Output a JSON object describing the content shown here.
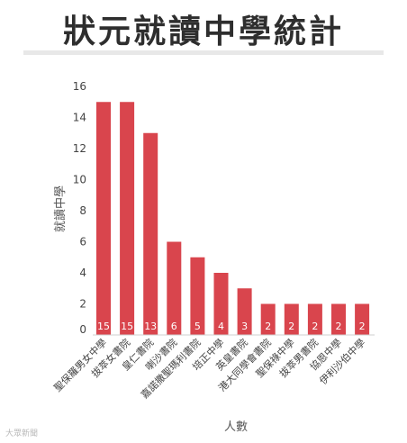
{
  "chart_data": {
    "type": "bar",
    "title": "狀元就讀中學統計",
    "xlabel": "人數",
    "ylabel": "就讀中學",
    "ylim": [
      0,
      16
    ],
    "yticks": [
      0,
      2,
      4,
      6,
      8,
      10,
      12,
      14,
      16
    ],
    "grid": false,
    "bar_color": "#d9454d",
    "categories": [
      "聖保羅男女中學",
      "拔萃女書院",
      "皇仁書院",
      "喇沙書院",
      "嘉諾撒聖瑪利書院",
      "培正中學",
      "英皇書院",
      "港大同學會書院",
      "聖保祿中學",
      "拔萃男書院",
      "協恩中學",
      "伊利沙伯中學"
    ],
    "values": [
      15,
      15,
      13,
      6,
      5,
      4,
      3,
      2,
      2,
      2,
      2,
      2
    ]
  },
  "watermark": "大眾新聞"
}
